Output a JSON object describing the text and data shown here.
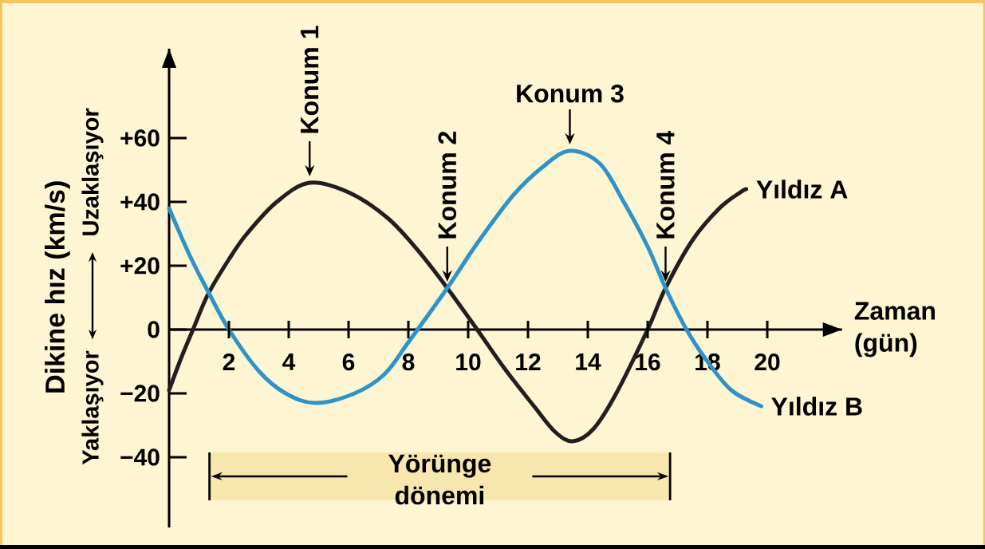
{
  "chart_data": {
    "type": "line",
    "xlabel": "Zaman (gün)",
    "ylabel": "Dikine hız (km/s)",
    "xlim": [
      0,
      22.5
    ],
    "ylim": [
      -62,
      88
    ],
    "xticks": [
      2,
      4,
      6,
      8,
      10,
      12,
      14,
      16,
      18,
      20
    ],
    "yticks": [
      {
        "value": -40,
        "label": "−40"
      },
      {
        "value": -20,
        "label": "−20"
      },
      0,
      {
        "value": 20,
        "label": "+20"
      },
      {
        "value": 40,
        "label": "+40"
      },
      {
        "value": 60,
        "label": "+60"
      }
    ],
    "series": [
      {
        "name": "Yıldız A",
        "color": "#231f20",
        "x": [
          0,
          0.4,
          0.8,
          1.3,
          2.0,
          2.6,
          3.6,
          4.7,
          6.0,
          7.3,
          8.3,
          9.3,
          10.3,
          11.2,
          12.2,
          12.9,
          13.5,
          14.2,
          14.95,
          16.0,
          16.6,
          17.5,
          18.4,
          19.1,
          19.3
        ],
        "values": [
          -19,
          -9,
          0,
          11,
          22,
          30,
          40,
          46,
          43,
          35,
          25,
          13,
          0,
          -12,
          -24,
          -32,
          -35,
          -31,
          -20,
          0,
          13,
          28,
          38,
          43,
          44
        ]
      },
      {
        "name": "Yıldız B",
        "color": "#2e93c8",
        "x": [
          0,
          0.7,
          1.3,
          2.0,
          3.0,
          3.9,
          4.9,
          6.2,
          7.2,
          8.0,
          9.3,
          10.3,
          11.5,
          12.5,
          13.4,
          14.4,
          15.2,
          16.0,
          16.6,
          17.3,
          18.0,
          18.8,
          19.8
        ],
        "values": [
          38,
          23,
          12,
          0,
          -13,
          -20,
          -23,
          -20,
          -14,
          -4,
          13,
          27,
          42,
          51,
          56,
          52,
          40,
          26,
          13,
          0,
          -10,
          -19,
          -24
        ]
      }
    ],
    "annotations": [
      {
        "text": "Konum 1",
        "x": 4.7,
        "y": 46
      },
      {
        "text": "Konum 2",
        "x": 9.3,
        "y": 13
      },
      {
        "text": "Konum 3",
        "x": 13.4,
        "y": 56
      },
      {
        "text": "Konum 4",
        "x": 16.6,
        "y": 13
      },
      "Uzaklaşıyor",
      "Yaklaşıyor"
    ],
    "bands": [
      {
        "axis": "x",
        "from": 1.35,
        "to": 16.75,
        "label": "Yörünge dönemi",
        "color": "#f7e6ad"
      }
    ]
  }
}
